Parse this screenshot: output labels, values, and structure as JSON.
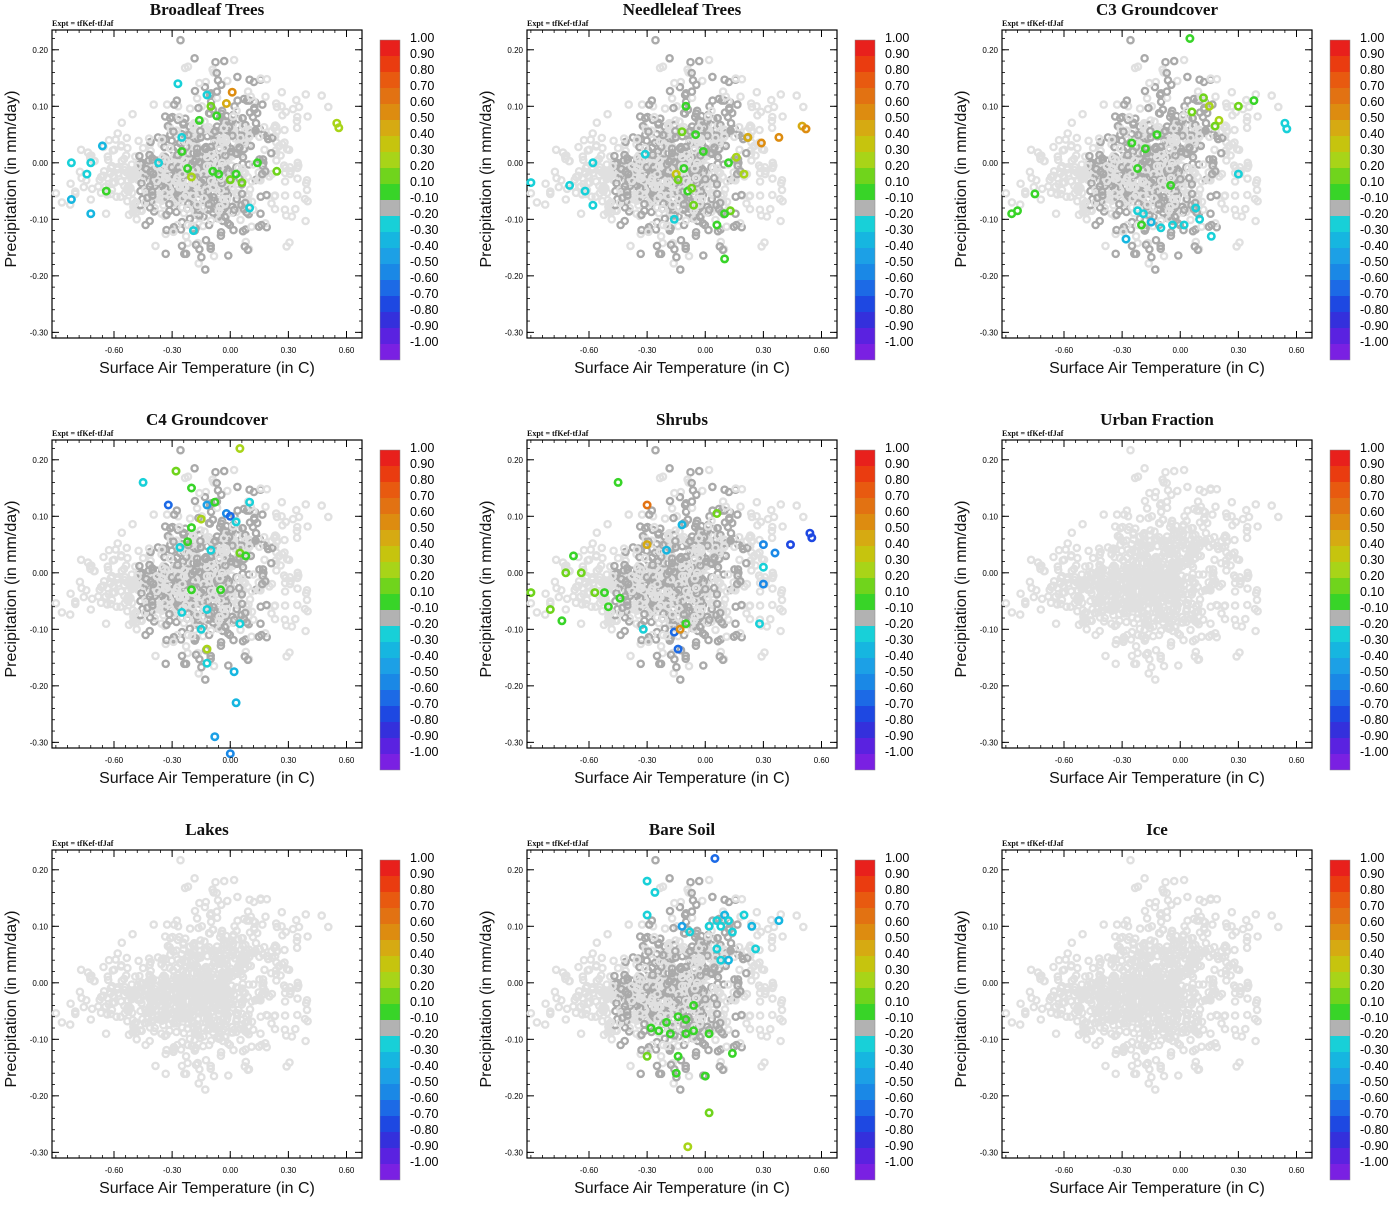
{
  "expt_label": "Expt = tfKef-tfJaf",
  "x_axis_label": "Surface Air Temperature (in C)",
  "y_axis_label": "Precipitation (in mm/day)",
  "x_ticks": [
    -0.6,
    -0.3,
    0.0,
    0.3,
    0.6
  ],
  "y_ticks": [
    0.2,
    0.1,
    0.0,
    -0.1,
    -0.2,
    -0.3
  ],
  "colorbar": {
    "labels": [
      "1.00",
      "0.90",
      "0.80",
      "0.70",
      "0.60",
      "0.50",
      "0.40",
      "0.30",
      "0.20",
      "0.10",
      "-0.10",
      "-0.20",
      "-0.30",
      "-0.40",
      "-0.50",
      "-0.60",
      "-0.70",
      "-0.80",
      "-0.90",
      "-1.00"
    ],
    "colors": [
      "#e8201c",
      "#ea3c10",
      "#e85a10",
      "#e27212",
      "#dd8c10",
      "#d6aa12",
      "#c6c40e",
      "#a8d418",
      "#70d41c",
      "#38d428",
      "#b2b2b2",
      "#18d0d8",
      "#16b6e0",
      "#1ca0e6",
      "#1a88e6",
      "#1c6ae6",
      "#1e48e2",
      "#3430dc",
      "#5a22e0",
      "#7a20e2"
    ]
  },
  "chart_data": [
    {
      "type": "scatter",
      "title": "Broadleaf Trees",
      "xlim": [
        -0.92,
        0.68
      ],
      "ylim": [
        -0.31,
        0.235
      ],
      "xticks": [
        -0.6,
        -0.3,
        0.0,
        0.3,
        0.6
      ],
      "yticks": [
        0.2,
        0.1,
        0.0,
        -0.1,
        -0.2,
        -0.3
      ],
      "point_set": "A",
      "color_by": "fraction_change",
      "highlights": [
        [
          -0.82,
          0.0,
          -0.2
        ],
        [
          -0.72,
          0.0,
          -0.2
        ],
        [
          -0.66,
          0.03,
          -0.3
        ],
        [
          -0.74,
          -0.02,
          -0.2
        ],
        [
          -0.64,
          -0.05,
          0.1
        ],
        [
          -0.82,
          -0.065,
          -0.3
        ],
        [
          -0.72,
          -0.09,
          -0.3
        ],
        [
          -0.37,
          0.0,
          -0.2
        ],
        [
          -0.25,
          0.045,
          -0.2
        ],
        [
          -0.12,
          0.12,
          -0.2
        ],
        [
          -0.02,
          0.105,
          0.5
        ],
        [
          0.01,
          0.125,
          0.6
        ],
        [
          -0.1,
          0.1,
          0.2
        ],
        [
          -0.07,
          0.083,
          0.1
        ],
        [
          -0.16,
          0.075,
          0.1
        ],
        [
          -0.25,
          0.02,
          0.1
        ],
        [
          -0.22,
          -0.01,
          0.1
        ],
        [
          -0.2,
          -0.025,
          0.3
        ],
        [
          -0.09,
          -0.015,
          0.1
        ],
        [
          -0.06,
          -0.02,
          0.1
        ],
        [
          0.0,
          -0.03,
          0.2
        ],
        [
          0.03,
          -0.02,
          0.1
        ],
        [
          0.06,
          -0.035,
          0.2
        ],
        [
          0.14,
          0.0,
          0.1
        ],
        [
          0.24,
          -0.015,
          0.2
        ],
        [
          0.55,
          0.07,
          0.3
        ],
        [
          0.56,
          0.062,
          0.3
        ],
        [
          0.1,
          -0.08,
          -0.2
        ],
        [
          -0.19,
          -0.12,
          -0.2
        ],
        [
          -0.27,
          0.14,
          -0.2
        ]
      ],
      "legend": "none"
    },
    {
      "type": "scatter",
      "title": "Needleleaf Trees",
      "xlim": [
        -0.92,
        0.68
      ],
      "ylim": [
        -0.31,
        0.235
      ],
      "xticks": [
        -0.6,
        -0.3,
        0.0,
        0.3,
        0.6
      ],
      "yticks": [
        0.2,
        0.1,
        0.0,
        -0.1,
        -0.2,
        -0.3
      ],
      "point_set": "A",
      "color_by": "fraction_change",
      "highlights": [
        [
          -0.9,
          -0.035,
          -0.2
        ],
        [
          -0.7,
          -0.04,
          -0.2
        ],
        [
          -0.58,
          0.0,
          -0.2
        ],
        [
          -0.62,
          -0.05,
          -0.2
        ],
        [
          -0.58,
          -0.075,
          -0.2
        ],
        [
          -0.31,
          0.015,
          -0.2
        ],
        [
          -0.1,
          0.1,
          0.1
        ],
        [
          -0.05,
          0.05,
          0.1
        ],
        [
          -0.12,
          0.055,
          0.2
        ],
        [
          -0.15,
          -0.02,
          0.4
        ],
        [
          -0.14,
          -0.03,
          0.2
        ],
        [
          -0.11,
          -0.01,
          0.1
        ],
        [
          -0.09,
          -0.05,
          0.1
        ],
        [
          -0.07,
          -0.045,
          0.2
        ],
        [
          -0.06,
          -0.075,
          0.2
        ],
        [
          -0.01,
          0.02,
          0.1
        ],
        [
          0.12,
          0.0,
          0.1
        ],
        [
          0.16,
          0.01,
          0.3
        ],
        [
          0.13,
          -0.085,
          0.2
        ],
        [
          0.1,
          -0.09,
          0.1
        ],
        [
          0.06,
          -0.11,
          0.1
        ],
        [
          0.1,
          -0.17,
          0.1
        ],
        [
          0.22,
          0.045,
          0.5
        ],
        [
          0.29,
          0.035,
          0.6
        ],
        [
          0.38,
          0.045,
          0.6
        ],
        [
          0.5,
          0.065,
          0.5
        ],
        [
          0.52,
          0.06,
          0.6
        ],
        [
          0.2,
          -0.02,
          0.3
        ],
        [
          -0.16,
          -0.1,
          -0.2
        ]
      ],
      "legend": "none"
    },
    {
      "type": "scatter",
      "title": "C3 Groundcover",
      "xlim": [
        -0.92,
        0.68
      ],
      "ylim": [
        -0.31,
        0.235
      ],
      "xticks": [
        -0.6,
        -0.3,
        0.0,
        0.3,
        0.6
      ],
      "yticks": [
        0.2,
        0.1,
        0.0,
        -0.1,
        -0.2,
        -0.3
      ],
      "point_set": "A",
      "color_by": "fraction_change",
      "highlights": [
        [
          -0.75,
          -0.055,
          0.1
        ],
        [
          -0.87,
          -0.09,
          0.1
        ],
        [
          -0.84,
          -0.085,
          0.1
        ],
        [
          -0.25,
          0.035,
          0.1
        ],
        [
          -0.18,
          0.025,
          0.1
        ],
        [
          -0.22,
          -0.01,
          0.1
        ],
        [
          -0.12,
          0.05,
          0.1
        ],
        [
          -0.05,
          -0.04,
          0.1
        ],
        [
          -0.22,
          -0.085,
          -0.2
        ],
        [
          -0.19,
          -0.09,
          -0.2
        ],
        [
          -0.2,
          -0.11,
          0.1
        ],
        [
          -0.15,
          -0.105,
          -0.3
        ],
        [
          -0.1,
          -0.115,
          -0.2
        ],
        [
          -0.28,
          -0.135,
          -0.3
        ],
        [
          -0.04,
          -0.11,
          -0.2
        ],
        [
          0.02,
          -0.11,
          -0.2
        ],
        [
          0.08,
          -0.08,
          -0.2
        ],
        [
          0.1,
          -0.1,
          -0.2
        ],
        [
          0.06,
          0.09,
          0.2
        ],
        [
          0.12,
          0.115,
          0.2
        ],
        [
          0.15,
          0.1,
          0.3
        ],
        [
          0.2,
          0.075,
          0.3
        ],
        [
          0.18,
          0.065,
          0.2
        ],
        [
          0.3,
          0.1,
          0.2
        ],
        [
          0.38,
          0.11,
          0.1
        ],
        [
          0.05,
          0.22,
          0.1
        ],
        [
          0.3,
          -0.02,
          -0.2
        ],
        [
          0.54,
          0.07,
          -0.2
        ],
        [
          0.55,
          0.06,
          -0.2
        ],
        [
          0.16,
          -0.13,
          -0.2
        ]
      ],
      "legend": "none"
    },
    {
      "type": "scatter",
      "title": "C4 Groundcover",
      "xlim": [
        -0.92,
        0.68
      ],
      "ylim": [
        -0.31,
        0.235
      ],
      "xticks": [
        -0.6,
        -0.3,
        0.0,
        0.3,
        0.6
      ],
      "yticks": [
        0.2,
        0.1,
        0.0,
        -0.1,
        -0.2,
        -0.3
      ],
      "point_set": "A",
      "color_by": "fraction_change",
      "highlights": [
        [
          -0.45,
          0.16,
          -0.2
        ],
        [
          -0.28,
          0.18,
          0.2
        ],
        [
          -0.2,
          0.15,
          0.1
        ],
        [
          -0.32,
          0.12,
          -0.6
        ],
        [
          -0.12,
          0.12,
          -0.4
        ],
        [
          -0.08,
          0.125,
          0.1
        ],
        [
          -0.02,
          0.105,
          -0.5
        ],
        [
          0.0,
          0.1,
          -0.6
        ],
        [
          0.03,
          0.09,
          -0.2
        ],
        [
          0.1,
          0.125,
          -0.2
        ],
        [
          -0.15,
          0.095,
          0.3
        ],
        [
          -0.2,
          0.08,
          0.1
        ],
        [
          -0.22,
          0.055,
          0.1
        ],
        [
          -0.26,
          0.045,
          -0.2
        ],
        [
          0.05,
          0.035,
          0.2
        ],
        [
          0.08,
          0.03,
          0.1
        ],
        [
          -0.1,
          0.04,
          -0.2
        ],
        [
          -0.25,
          -0.07,
          -0.2
        ],
        [
          -0.05,
          -0.03,
          0.1
        ],
        [
          -0.2,
          -0.03,
          0.1
        ],
        [
          -0.12,
          -0.065,
          -0.2
        ],
        [
          -0.15,
          -0.1,
          -0.2
        ],
        [
          -0.12,
          -0.135,
          0.3
        ],
        [
          -0.12,
          -0.16,
          -0.2
        ],
        [
          0.05,
          -0.09,
          -0.2
        ],
        [
          0.02,
          -0.175,
          -0.3
        ],
        [
          0.03,
          -0.23,
          -0.3
        ],
        [
          -0.08,
          -0.29,
          -0.4
        ],
        [
          0.0,
          -0.32,
          -0.5
        ],
        [
          0.05,
          0.22,
          0.3
        ]
      ],
      "legend": "none"
    },
    {
      "type": "scatter",
      "title": "Shrubs",
      "xlim": [
        -0.92,
        0.68
      ],
      "ylim": [
        -0.31,
        0.235
      ],
      "xticks": [
        -0.6,
        -0.3,
        0.0,
        0.3,
        0.6
      ],
      "yticks": [
        0.2,
        0.1,
        0.0,
        -0.1,
        -0.2,
        -0.3
      ],
      "point_set": "A",
      "color_by": "fraction_change",
      "highlights": [
        [
          -0.9,
          -0.035,
          0.2
        ],
        [
          -0.8,
          -0.065,
          0.2
        ],
        [
          -0.74,
          -0.085,
          0.1
        ],
        [
          -0.72,
          0.0,
          0.2
        ],
        [
          -0.68,
          0.03,
          0.1
        ],
        [
          -0.64,
          0.0,
          0.2
        ],
        [
          -0.57,
          -0.035,
          0.2
        ],
        [
          -0.52,
          -0.035,
          0.1
        ],
        [
          -0.5,
          -0.06,
          0.1
        ],
        [
          -0.44,
          -0.045,
          0.1
        ],
        [
          -0.45,
          0.16,
          0.1
        ],
        [
          -0.3,
          0.12,
          0.7
        ],
        [
          -0.3,
          0.05,
          0.5
        ],
        [
          -0.2,
          0.04,
          -0.3
        ],
        [
          -0.12,
          0.085,
          -0.3
        ],
        [
          -0.16,
          -0.105,
          -0.6
        ],
        [
          -0.13,
          -0.1,
          0.6
        ],
        [
          -0.14,
          -0.135,
          -0.6
        ],
        [
          -0.1,
          -0.09,
          0.1
        ],
        [
          0.06,
          0.105,
          0.2
        ],
        [
          0.3,
          0.05,
          -0.5
        ],
        [
          0.36,
          0.035,
          -0.5
        ],
        [
          0.44,
          0.05,
          -0.7
        ],
        [
          0.54,
          0.07,
          -0.7
        ],
        [
          0.55,
          0.062,
          -0.7
        ],
        [
          0.3,
          0.01,
          -0.2
        ],
        [
          0.3,
          -0.02,
          -0.5
        ],
        [
          0.28,
          -0.09,
          -0.2
        ],
        [
          -0.32,
          -0.1,
          -0.2
        ]
      ],
      "legend": "none"
    },
    {
      "type": "scatter",
      "title": "Urban Fraction",
      "xlim": [
        -0.92,
        0.68
      ],
      "ylim": [
        -0.31,
        0.235
      ],
      "xticks": [
        -0.6,
        -0.3,
        0.0,
        0.3,
        0.6
      ],
      "yticks": [
        0.2,
        0.1,
        0.0,
        -0.1,
        -0.2,
        -0.3
      ],
      "point_set": "A",
      "color_by": "fraction_change",
      "highlights": [],
      "legend": "none"
    },
    {
      "type": "scatter",
      "title": "Lakes",
      "xlim": [
        -0.92,
        0.68
      ],
      "ylim": [
        -0.31,
        0.235
      ],
      "xticks": [
        -0.6,
        -0.3,
        0.0,
        0.3,
        0.6
      ],
      "yticks": [
        0.2,
        0.1,
        0.0,
        -0.1,
        -0.2,
        -0.3
      ],
      "point_set": "A",
      "color_by": "fraction_change",
      "highlights": [],
      "legend": "none"
    },
    {
      "type": "scatter",
      "title": "Bare Soil",
      "xlim": [
        -0.92,
        0.68
      ],
      "ylim": [
        -0.31,
        0.235
      ],
      "xticks": [
        -0.6,
        -0.3,
        0.0,
        0.3,
        0.6
      ],
      "yticks": [
        0.2,
        0.1,
        0.0,
        -0.1,
        -0.2,
        -0.3
      ],
      "point_set": "A",
      "color_by": "fraction_change",
      "highlights": [
        [
          -0.3,
          0.18,
          -0.2
        ],
        [
          -0.26,
          0.16,
          -0.2
        ],
        [
          -0.3,
          0.12,
          -0.2
        ],
        [
          -0.12,
          0.1,
          -0.4
        ],
        [
          0.05,
          0.22,
          -0.6
        ],
        [
          0.02,
          0.1,
          -0.2
        ],
        [
          0.06,
          0.11,
          -0.2
        ],
        [
          0.08,
          0.1,
          -0.2
        ],
        [
          0.1,
          0.12,
          -0.3
        ],
        [
          0.12,
          0.11,
          -0.2
        ],
        [
          0.14,
          0.09,
          -0.2
        ],
        [
          0.2,
          0.12,
          -0.2
        ],
        [
          0.24,
          0.1,
          -0.3
        ],
        [
          0.38,
          0.11,
          -0.3
        ],
        [
          0.06,
          0.06,
          -0.2
        ],
        [
          0.08,
          0.04,
          -0.2
        ],
        [
          0.12,
          0.04,
          -0.3
        ],
        [
          0.26,
          0.06,
          -0.2
        ],
        [
          -0.08,
          0.09,
          -0.2
        ],
        [
          -0.28,
          -0.08,
          0.1
        ],
        [
          -0.24,
          -0.085,
          0.1
        ],
        [
          -0.2,
          -0.07,
          0.1
        ],
        [
          -0.18,
          -0.09,
          0.1
        ],
        [
          -0.14,
          -0.06,
          0.1
        ],
        [
          -0.1,
          -0.065,
          0.1
        ],
        [
          -0.1,
          -0.09,
          0.1
        ],
        [
          -0.06,
          -0.085,
          0.1
        ],
        [
          0.02,
          -0.09,
          0.1
        ],
        [
          -0.3,
          -0.13,
          0.2
        ],
        [
          -0.14,
          -0.13,
          0.1
        ],
        [
          -0.15,
          -0.16,
          0.1
        ],
        [
          0.0,
          -0.165,
          0.1
        ],
        [
          0.14,
          -0.125,
          0.1
        ],
        [
          0.02,
          -0.23,
          0.2
        ],
        [
          -0.09,
          -0.29,
          0.3
        ],
        [
          -0.06,
          -0.04,
          0.1
        ]
      ],
      "legend": "none"
    },
    {
      "type": "scatter",
      "title": "Ice",
      "xlim": [
        -0.92,
        0.68
      ],
      "ylim": [
        -0.31,
        0.235
      ],
      "xticks": [
        -0.6,
        -0.3,
        0.0,
        0.3,
        0.6
      ],
      "yticks": [
        0.2,
        0.1,
        0.0,
        -0.1,
        -0.2,
        -0.3
      ],
      "point_set": "A",
      "color_by": "fraction_change",
      "highlights": [],
      "legend": "none"
    }
  ]
}
